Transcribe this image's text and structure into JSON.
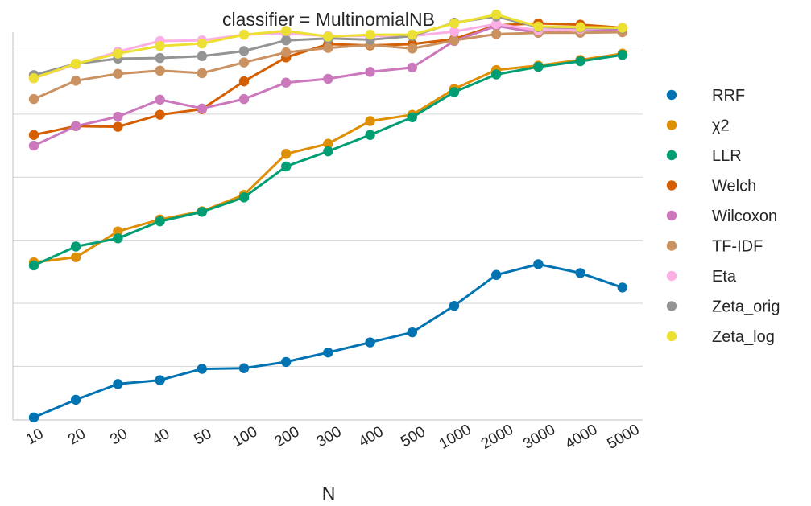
{
  "chart_data": {
    "type": "line",
    "title": "classifier = MultinomialNB",
    "xlabel": "N",
    "ylabel": "",
    "categories": [
      "10",
      "20",
      "30",
      "40",
      "50",
      "100",
      "200",
      "300",
      "400",
      "500",
      "1000",
      "2000",
      "3000",
      "4000",
      "5000"
    ],
    "ylim": [
      0.215,
      0.83
    ],
    "yticks": [
      0.3,
      0.4,
      0.5,
      0.6,
      0.7,
      0.8
    ],
    "grid": "horizontal",
    "legend_position": "right",
    "series": [
      {
        "name": "RRF",
        "color": "#0173b2",
        "values": [
          0.219,
          0.247,
          0.272,
          0.278,
          0.296,
          0.297,
          0.307,
          0.322,
          0.338,
          0.354,
          0.396,
          0.445,
          0.462,
          0.448,
          0.425
        ]
      },
      {
        "name": "χ2",
        "color": "#de8f05",
        "values": [
          0.465,
          0.473,
          0.514,
          0.533,
          0.546,
          0.572,
          0.637,
          0.653,
          0.689,
          0.699,
          0.74,
          0.77,
          0.777,
          0.786,
          0.796
        ]
      },
      {
        "name": "LLR",
        "color": "#029e73",
        "values": [
          0.46,
          0.49,
          0.503,
          0.53,
          0.545,
          0.568,
          0.617,
          0.641,
          0.667,
          0.695,
          0.735,
          0.763,
          0.775,
          0.784,
          0.794
        ]
      },
      {
        "name": "Welch",
        "color": "#d55e00",
        "values": [
          0.667,
          0.681,
          0.68,
          0.699,
          0.708,
          0.752,
          0.79,
          0.811,
          0.809,
          0.811,
          0.819,
          0.841,
          0.844,
          0.842,
          0.837
        ]
      },
      {
        "name": "Wilcoxon",
        "color": "#cc78bc",
        "values": [
          0.65,
          0.681,
          0.696,
          0.723,
          0.709,
          0.724,
          0.75,
          0.756,
          0.767,
          0.774,
          0.816,
          0.84,
          0.829,
          0.834,
          0.834
        ]
      },
      {
        "name": "TF-IDF",
        "color": "#ca9161",
        "values": [
          0.724,
          0.753,
          0.764,
          0.769,
          0.765,
          0.782,
          0.798,
          0.805,
          0.81,
          0.804,
          0.817,
          0.827,
          0.829,
          0.829,
          0.83
        ]
      },
      {
        "name": "Eta",
        "color": "#fbafe4",
        "values": [
          0.757,
          0.779,
          0.799,
          0.816,
          0.817,
          0.826,
          0.828,
          0.824,
          0.824,
          0.824,
          0.831,
          0.843,
          0.833,
          0.835,
          0.837
        ]
      },
      {
        "name": "Zeta_orig",
        "color": "#949494",
        "values": [
          0.762,
          0.78,
          0.788,
          0.789,
          0.792,
          0.8,
          0.817,
          0.82,
          0.818,
          0.824,
          0.845,
          0.855,
          0.838,
          0.837,
          0.836
        ]
      },
      {
        "name": "Zeta_log",
        "color": "#ece133",
        "values": [
          0.757,
          0.78,
          0.796,
          0.808,
          0.812,
          0.826,
          0.832,
          0.823,
          0.826,
          0.826,
          0.844,
          0.858,
          0.839,
          0.838,
          0.837
        ]
      }
    ]
  }
}
